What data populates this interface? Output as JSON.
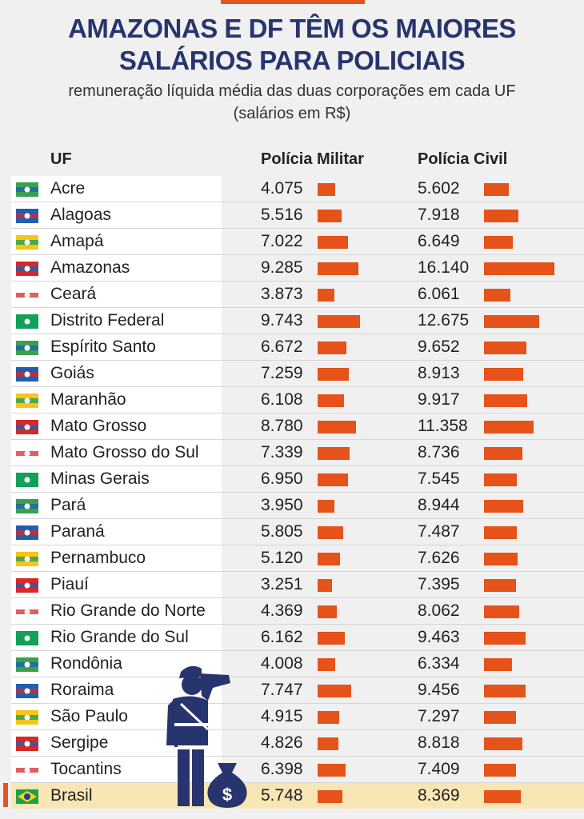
{
  "title_line1": "AMAZONAS E DF TÊM OS MAIORES",
  "title_line2": "SALÁRIOS PARA POLICIAIS",
  "subtitle_line1": "remuneração líquida média das duas corporações em cada UF",
  "subtitle_line2": "(salários em R$)",
  "headers": {
    "uf": "UF",
    "pm": "Polícia Militar",
    "pc": "Polícia Civil"
  },
  "colors": {
    "title": "#27346e",
    "bar": "#e5531a",
    "highlight": "#f8e6b4"
  },
  "rows": [
    {
      "uf": "Acre",
      "pm": "4.075",
      "pc": "5.602"
    },
    {
      "uf": "Alagoas",
      "pm": "5.516",
      "pc": "7.918"
    },
    {
      "uf": "Amapá",
      "pm": "7.022",
      "pc": "6.649"
    },
    {
      "uf": "Amazonas",
      "pm": "9.285",
      "pc": "16.140"
    },
    {
      "uf": "Ceará",
      "pm": "3.873",
      "pc": "6.061"
    },
    {
      "uf": "Distrito Federal",
      "pm": "9.743",
      "pc": "12.675"
    },
    {
      "uf": "Espírito Santo",
      "pm": "6.672",
      "pc": "9.652"
    },
    {
      "uf": "Goiás",
      "pm": "7.259",
      "pc": "8.913"
    },
    {
      "uf": "Maranhão",
      "pm": "6.108",
      "pc": "9.917"
    },
    {
      "uf": "Mato Grosso",
      "pm": "8.780",
      "pc": "11.358"
    },
    {
      "uf": "Mato Grosso do Sul",
      "pm": "7.339",
      "pc": "8.736"
    },
    {
      "uf": "Minas Gerais",
      "pm": "6.950",
      "pc": "7.545"
    },
    {
      "uf": "Pará",
      "pm": "3.950",
      "pc": "8.944"
    },
    {
      "uf": "Paraná",
      "pm": "5.805",
      "pc": "7.487"
    },
    {
      "uf": "Pernambuco",
      "pm": "5.120",
      "pc": "7.626"
    },
    {
      "uf": "Piauí",
      "pm": "3.251",
      "pc": "7.395"
    },
    {
      "uf": "Rio Grande do Norte",
      "pm": "4.369",
      "pc": "8.062"
    },
    {
      "uf": "Rio Grande do Sul",
      "pm": "6.162",
      "pc": "9.463"
    },
    {
      "uf": "Rondônia",
      "pm": "4.008",
      "pc": "6.334"
    },
    {
      "uf": "Roraima",
      "pm": "7.747",
      "pc": "9.456"
    },
    {
      "uf": "São Paulo",
      "pm": "4.915",
      "pc": "7.297"
    },
    {
      "uf": "Sergipe",
      "pm": "4.826",
      "pc": "8.818"
    },
    {
      "uf": "Tocantins",
      "pm": "6.398",
      "pc": "7.409"
    },
    {
      "uf": "Brasil",
      "pm": "5.748",
      "pc": "8.369",
      "total": true
    }
  ],
  "chart_data": {
    "type": "bar",
    "title": "AMAZONAS E DF TÊM OS MAIORES SALÁRIOS PARA POLICIAIS",
    "subtitle": "remuneração líquida média das duas corporações em cada UF (salários em R$)",
    "categories": [
      "Acre",
      "Alagoas",
      "Amapá",
      "Amazonas",
      "Ceará",
      "Distrito Federal",
      "Espírito Santo",
      "Goiás",
      "Maranhão",
      "Mato Grosso",
      "Mato Grosso do Sul",
      "Minas Gerais",
      "Pará",
      "Paraná",
      "Pernambuco",
      "Piauí",
      "Rio Grande do Norte",
      "Rio Grande do Sul",
      "Rondônia",
      "Roraima",
      "São Paulo",
      "Sergipe",
      "Tocantins",
      "Brasil"
    ],
    "series": [
      {
        "name": "Polícia Militar",
        "values": [
          4075,
          5516,
          7022,
          9285,
          3873,
          9743,
          6672,
          7259,
          6108,
          8780,
          7339,
          6950,
          3950,
          5805,
          5120,
          3251,
          4369,
          6162,
          4008,
          7747,
          4915,
          4826,
          6398,
          5748
        ]
      },
      {
        "name": "Polícia Civil",
        "values": [
          5602,
          7918,
          6649,
          16140,
          6061,
          12675,
          9652,
          8913,
          9917,
          11358,
          8736,
          7545,
          8944,
          7487,
          7626,
          7395,
          8062,
          9463,
          6334,
          9456,
          7297,
          8818,
          7409,
          8369
        ]
      }
    ]
  }
}
